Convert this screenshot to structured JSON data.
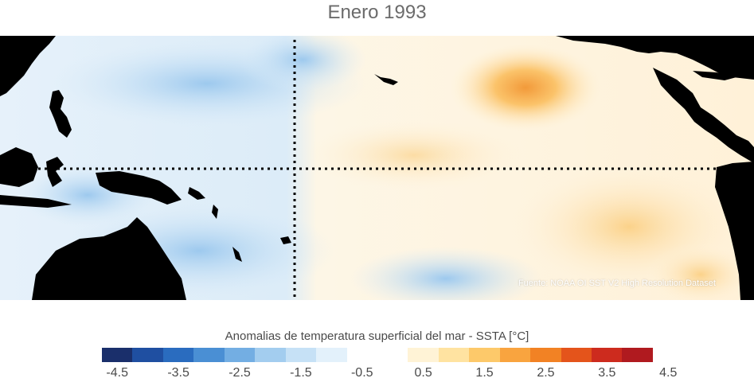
{
  "title": "Enero 1993",
  "source": "Fuente: NOAA OI SST V2 High Resolution Dataset",
  "colorbar": {
    "title": "Anomalias de temperatura superficial del mar - SSTA  [°C]",
    "ticks": [
      "-4.5",
      "-3.5",
      "-2.5",
      "-1.5",
      "-0.5",
      "0.5",
      "1.5",
      "2.5",
      "3.5",
      "4.5"
    ],
    "colors": [
      "#1a2f6b",
      "#1f4fa1",
      "#2a6cbf",
      "#4a8fd4",
      "#73aee3",
      "#a3cdef",
      "#c6e1f6",
      "#e3f1fb",
      "#ffffff",
      "#ffffff",
      "#fff3d6",
      "#ffe3a1",
      "#fdc96a",
      "#f9a43f",
      "#f28224",
      "#e4541b",
      "#cd2b1e",
      "#b01a1f"
    ]
  },
  "colors": {
    "land": "#000000",
    "guides": "#000000"
  }
}
